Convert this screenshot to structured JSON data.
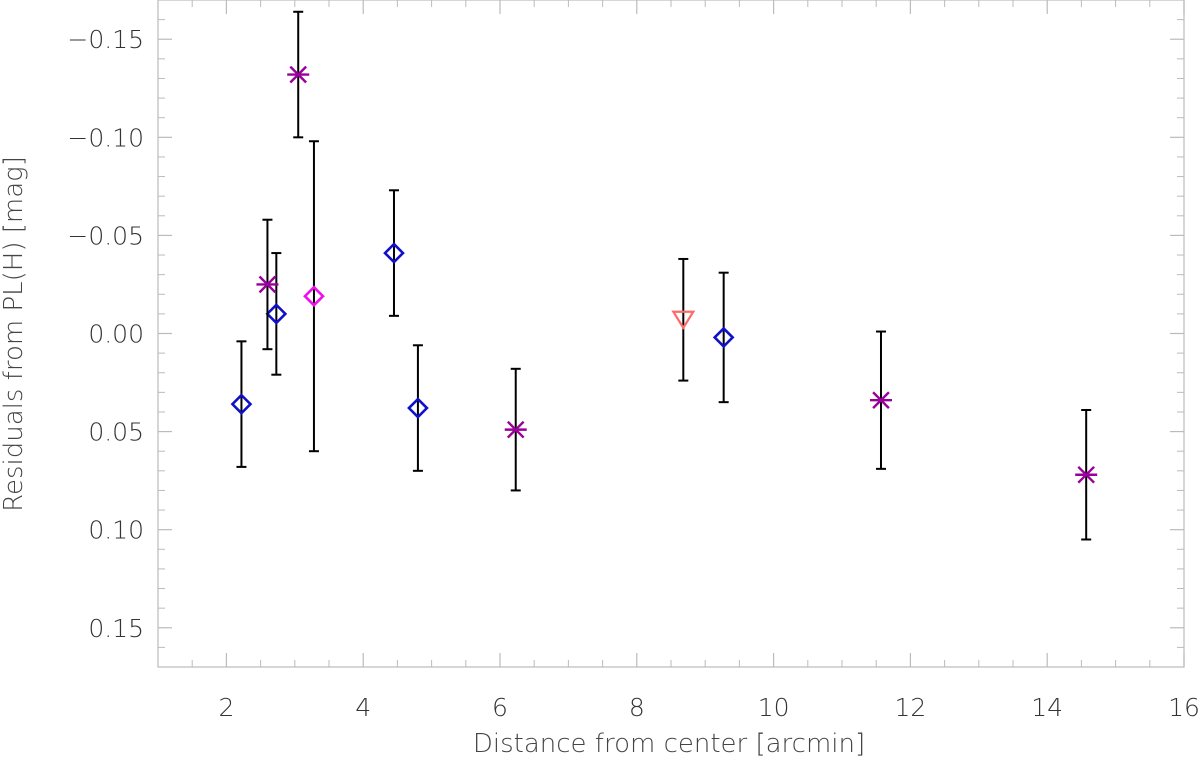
{
  "chart_data": {
    "type": "scatter",
    "title": "",
    "xlabel": "Distance from center [arcmin]",
    "ylabel": "Residuals from PL(H) [mag]",
    "xlim": [
      1,
      16
    ],
    "ylim": [
      0.17,
      -0.17
    ],
    "y_inverted": true,
    "grid": false,
    "xticks": [
      2,
      4,
      6,
      8,
      10,
      12,
      14,
      16
    ],
    "xtick_labels": [
      "2",
      "4",
      "6",
      "8",
      "10",
      "12",
      "14",
      "16"
    ],
    "yticks": [
      -0.15,
      -0.1,
      -0.05,
      0.0,
      0.05,
      0.1,
      0.15
    ],
    "ytick_labels": [
      "−0.15",
      "−0.10",
      "−0.05",
      "0.00",
      "0.05",
      "0.10",
      "0.15"
    ],
    "errorbar_color": "#000000",
    "series": [
      {
        "marker": "diamond",
        "color": "#1010cc",
        "points": [
          {
            "x": 2.22,
            "y": 0.036,
            "err": 0.032
          },
          {
            "x": 2.73,
            "y": -0.01,
            "err": 0.031
          },
          {
            "x": 4.45,
            "y": -0.041,
            "err": 0.032
          },
          {
            "x": 4.8,
            "y": 0.038,
            "err": 0.032
          },
          {
            "x": 9.27,
            "y": 0.002,
            "err": 0.033
          }
        ]
      },
      {
        "marker": "asterisk",
        "color": "#990099",
        "points": [
          {
            "x": 2.6,
            "y": -0.025,
            "err": 0.033
          },
          {
            "x": 3.05,
            "y": -0.132,
            "err": 0.032
          },
          {
            "x": 6.23,
            "y": 0.049,
            "err": 0.031
          },
          {
            "x": 11.57,
            "y": 0.034,
            "err": 0.035
          },
          {
            "x": 14.57,
            "y": 0.072,
            "err": 0.033
          }
        ]
      },
      {
        "marker": "diamond",
        "color": "#ee11ee",
        "points": [
          {
            "x": 3.28,
            "y": -0.019,
            "err": 0.079
          }
        ]
      },
      {
        "marker": "triangle-down",
        "color": "#ff6a6a",
        "points": [
          {
            "x": 8.68,
            "y": -0.007,
            "err": 0.031
          }
        ]
      }
    ]
  }
}
